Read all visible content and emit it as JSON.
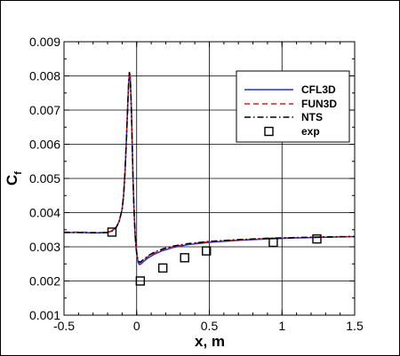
{
  "chart_data": {
    "type": "line",
    "xlabel": "x, m",
    "ylabel": "C",
    "ylabel_subscript": "f",
    "xlim": [
      -0.5,
      1.5
    ],
    "ylim": [
      0.001,
      0.009
    ],
    "xticks": [
      -0.5,
      0,
      0.5,
      1,
      1.5
    ],
    "xtick_labels": [
      "-0.5",
      "0",
      "0.5",
      "1",
      "1.5"
    ],
    "yticks": [
      0.001,
      0.002,
      0.003,
      0.004,
      0.005,
      0.006,
      0.007,
      0.008,
      0.009
    ],
    "ytick_labels": [
      "0.001",
      "0.002",
      "0.003",
      "0.004",
      "0.005",
      "0.006",
      "0.007",
      "0.008",
      "0.009"
    ],
    "grid": true,
    "legend_position": "top-right",
    "colors": {
      "CFL3D": "#1f2fd6",
      "FUN3D": "#e01b1b",
      "NTS": "#000000",
      "exp": "#000000"
    },
    "series": [
      {
        "name": "CFL3D",
        "style": "solid",
        "x": [
          -0.5,
          -0.4,
          -0.3,
          -0.25,
          -0.2,
          -0.17,
          -0.14,
          -0.12,
          -0.1,
          -0.09,
          -0.08,
          -0.07,
          -0.06,
          -0.055,
          -0.05,
          -0.045,
          -0.04,
          -0.035,
          -0.03,
          -0.025,
          -0.02,
          -0.015,
          -0.01,
          -0.005,
          0,
          0.005,
          0.01,
          0.015,
          0.02,
          0.03,
          0.05,
          0.08,
          0.12,
          0.18,
          0.25,
          0.35,
          0.5,
          0.7,
          0.9,
          1.1,
          1.3,
          1.5
        ],
        "values": [
          0.00342,
          0.00342,
          0.00341,
          0.00341,
          0.00342,
          0.00346,
          0.00358,
          0.00375,
          0.0041,
          0.0045,
          0.0052,
          0.0062,
          0.0073,
          0.0078,
          0.0081,
          0.008,
          0.0075,
          0.0068,
          0.0059,
          0.005,
          0.0043,
          0.00375,
          0.0033,
          0.003,
          0.0028,
          0.00265,
          0.00255,
          0.0025,
          0.00248,
          0.0025,
          0.00258,
          0.00268,
          0.00278,
          0.00289,
          0.00298,
          0.00306,
          0.00313,
          0.00319,
          0.00323,
          0.00326,
          0.00328,
          0.0033
        ]
      },
      {
        "name": "FUN3D",
        "style": "dashed",
        "x": [
          -0.5,
          -0.4,
          -0.3,
          -0.25,
          -0.2,
          -0.17,
          -0.14,
          -0.12,
          -0.1,
          -0.09,
          -0.08,
          -0.07,
          -0.06,
          -0.055,
          -0.05,
          -0.045,
          -0.04,
          -0.035,
          -0.03,
          -0.025,
          -0.02,
          -0.015,
          -0.01,
          -0.005,
          0,
          0.005,
          0.01,
          0.015,
          0.02,
          0.03,
          0.05,
          0.08,
          0.12,
          0.18,
          0.25,
          0.35,
          0.5,
          0.7,
          0.9,
          1.1,
          1.3,
          1.5
        ],
        "values": [
          0.00343,
          0.00343,
          0.00342,
          0.00342,
          0.00343,
          0.00347,
          0.00358,
          0.00375,
          0.0041,
          0.0045,
          0.0052,
          0.0062,
          0.0073,
          0.0078,
          0.00812,
          0.008,
          0.0075,
          0.0068,
          0.0059,
          0.005,
          0.0043,
          0.00376,
          0.00331,
          0.00301,
          0.00282,
          0.00268,
          0.0026,
          0.00255,
          0.00253,
          0.00255,
          0.00262,
          0.00272,
          0.00282,
          0.00292,
          0.003,
          0.00308,
          0.00315,
          0.0032,
          0.00324,
          0.00327,
          0.00329,
          0.0033
        ]
      },
      {
        "name": "NTS",
        "style": "dashdot",
        "x": [
          -0.5,
          -0.4,
          -0.3,
          -0.25,
          -0.2,
          -0.17,
          -0.14,
          -0.12,
          -0.1,
          -0.09,
          -0.08,
          -0.07,
          -0.06,
          -0.055,
          -0.05,
          -0.045,
          -0.04,
          -0.035,
          -0.03,
          -0.025,
          -0.02,
          -0.015,
          -0.01,
          -0.005,
          0,
          0.005,
          0.01,
          0.015,
          0.02,
          0.03,
          0.05,
          0.08,
          0.12,
          0.18,
          0.25,
          0.35,
          0.5,
          0.7,
          0.9,
          1.1,
          1.3,
          1.5
        ],
        "values": [
          0.00342,
          0.00342,
          0.00341,
          0.00341,
          0.00342,
          0.00346,
          0.00357,
          0.00374,
          0.0041,
          0.0045,
          0.0052,
          0.0062,
          0.0073,
          0.0078,
          0.0081,
          0.008,
          0.0075,
          0.0068,
          0.0059,
          0.005,
          0.0043,
          0.00376,
          0.00332,
          0.00303,
          0.00284,
          0.0027,
          0.00262,
          0.00257,
          0.00255,
          0.00257,
          0.00264,
          0.00274,
          0.00284,
          0.00294,
          0.00302,
          0.00309,
          0.00316,
          0.00321,
          0.00325,
          0.00327,
          0.00329,
          0.0033
        ]
      },
      {
        "name": "exp",
        "style": "markers",
        "x": [
          -0.17,
          0.025,
          0.18,
          0.33,
          0.48,
          0.94,
          1.24
        ],
        "values": [
          0.00343,
          0.002,
          0.00238,
          0.00268,
          0.00288,
          0.00313,
          0.00323
        ]
      }
    ]
  }
}
